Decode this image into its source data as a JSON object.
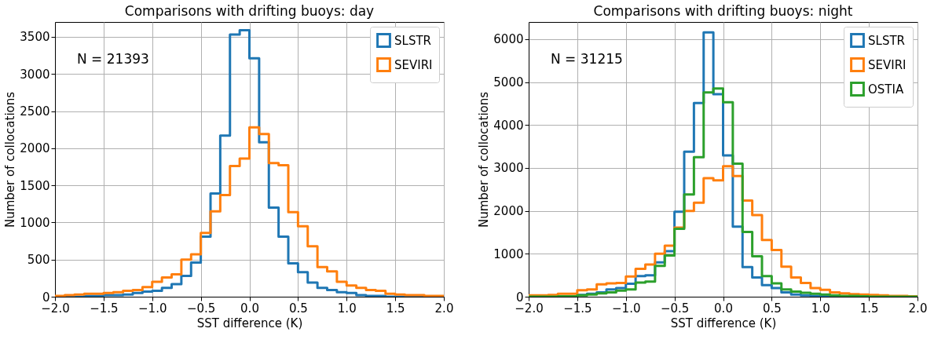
{
  "chart_data": [
    {
      "type": "histogram",
      "title": "Comparisons with drifting buoys: day",
      "xlabel": "SST difference (K)",
      "ylabel": "Number of collocations",
      "annotations": [
        "N = 21393"
      ],
      "bins": [
        -2.0,
        -1.9,
        -1.8,
        -1.7,
        -1.6,
        -1.5,
        -1.4,
        -1.3,
        -1.2,
        -1.1,
        -1.0,
        -0.9,
        -0.8,
        -0.7,
        -0.6,
        -0.5,
        -0.4,
        -0.3,
        -0.2,
        -0.1,
        0.0,
        0.1,
        0.2,
        0.3,
        0.4,
        0.5,
        0.6,
        0.7,
        0.8,
        0.9,
        1.0,
        1.1,
        1.2,
        1.3,
        1.4,
        1.5,
        1.6,
        1.7,
        1.8,
        1.9,
        2.0
      ],
      "series": [
        {
          "name": "SLSTR",
          "color": "#1f77b4",
          "values": [
            0,
            0,
            0,
            10,
            10,
            20,
            20,
            30,
            50,
            70,
            80,
            120,
            170,
            280,
            460,
            810,
            1390,
            2170,
            3530,
            3590,
            3210,
            2080,
            1200,
            810,
            450,
            330,
            190,
            120,
            90,
            60,
            50,
            20,
            10,
            10,
            0,
            0,
            0,
            0,
            0,
            0
          ]
        },
        {
          "name": "SEVIRI",
          "color": "#ff7f0e",
          "values": [
            10,
            20,
            30,
            40,
            40,
            50,
            60,
            80,
            90,
            130,
            200,
            260,
            300,
            500,
            570,
            860,
            1150,
            1370,
            1760,
            1860,
            2280,
            2190,
            1800,
            1770,
            1140,
            950,
            680,
            400,
            340,
            200,
            150,
            120,
            90,
            80,
            40,
            30,
            20,
            20,
            10,
            10
          ]
        }
      ],
      "xlim": [
        -2.0,
        2.0
      ],
      "ylim": [
        0,
        3700
      ],
      "xticks": [
        {
          "value": -2.0,
          "label": "−2.0"
        },
        {
          "value": -1.5,
          "label": "−1.5"
        },
        {
          "value": -1.0,
          "label": "−1.0"
        },
        {
          "value": -0.5,
          "label": "−0.5"
        },
        {
          "value": 0.0,
          "label": "0.0"
        },
        {
          "value": 0.5,
          "label": "0.5"
        },
        {
          "value": 1.0,
          "label": "1.0"
        },
        {
          "value": 1.5,
          "label": "1.5"
        },
        {
          "value": 2.0,
          "label": "2.0"
        }
      ],
      "yticks": [
        0,
        500,
        1000,
        1500,
        2000,
        2500,
        3000,
        3500
      ],
      "grid": true,
      "legend": "top right"
    },
    {
      "type": "histogram",
      "title": "Comparisons with drifting buoys: night",
      "xlabel": "SST difference (K)",
      "ylabel": "Number of collocations",
      "annotations": [
        "N = 31215"
      ],
      "bins": [
        -2.0,
        -1.9,
        -1.8,
        -1.7,
        -1.6,
        -1.5,
        -1.4,
        -1.3,
        -1.2,
        -1.1,
        -1.0,
        -0.9,
        -0.8,
        -0.7,
        -0.6,
        -0.5,
        -0.4,
        -0.3,
        -0.2,
        -0.1,
        0.0,
        0.1,
        0.2,
        0.3,
        0.4,
        0.5,
        0.6,
        0.7,
        0.8,
        0.9,
        1.0,
        1.1,
        1.2,
        1.3,
        1.4,
        1.5,
        1.6,
        1.7,
        1.8,
        1.9,
        2.0
      ],
      "series": [
        {
          "name": "SLSTR",
          "color": "#1f77b4",
          "values": [
            0,
            0,
            0,
            10,
            10,
            40,
            70,
            100,
            170,
            200,
            300,
            480,
            500,
            800,
            1060,
            1980,
            3380,
            4510,
            6160,
            4720,
            3290,
            1630,
            690,
            450,
            270,
            200,
            100,
            50,
            30,
            20,
            10,
            0,
            0,
            0,
            0,
            0,
            0,
            0,
            0,
            0
          ]
        },
        {
          "name": "SEVIRI",
          "color": "#ff7f0e",
          "values": [
            30,
            30,
            40,
            70,
            70,
            150,
            170,
            290,
            310,
            320,
            470,
            650,
            750,
            1000,
            1190,
            1610,
            2000,
            2190,
            2760,
            2710,
            3040,
            2810,
            2240,
            1900,
            1320,
            1090,
            700,
            450,
            320,
            200,
            160,
            100,
            80,
            60,
            50,
            40,
            30,
            20,
            20,
            10
          ]
        },
        {
          "name": "OSTIA",
          "color": "#2ca02c",
          "values": [
            0,
            0,
            0,
            10,
            10,
            30,
            50,
            80,
            100,
            140,
            170,
            330,
            350,
            720,
            960,
            1580,
            2380,
            3250,
            4760,
            4850,
            4530,
            3100,
            1510,
            940,
            480,
            310,
            170,
            120,
            90,
            70,
            50,
            30,
            20,
            20,
            10,
            0,
            0,
            0,
            0,
            0
          ]
        }
      ],
      "xlim": [
        -2.0,
        2.0
      ],
      "ylim": [
        0,
        6400
      ],
      "xticks": [
        {
          "value": -2.0,
          "label": "−2.0"
        },
        {
          "value": -1.5,
          "label": "−1.5"
        },
        {
          "value": -1.0,
          "label": "−1.0"
        },
        {
          "value": -0.5,
          "label": "−0.5"
        },
        {
          "value": 0.0,
          "label": "0.0"
        },
        {
          "value": 0.5,
          "label": "0.5"
        },
        {
          "value": 1.0,
          "label": "1.0"
        },
        {
          "value": 1.5,
          "label": "1.5"
        },
        {
          "value": 2.0,
          "label": "2.0"
        }
      ],
      "yticks": [
        0,
        1000,
        2000,
        3000,
        4000,
        5000,
        6000
      ],
      "grid": true,
      "legend": "top right"
    }
  ]
}
